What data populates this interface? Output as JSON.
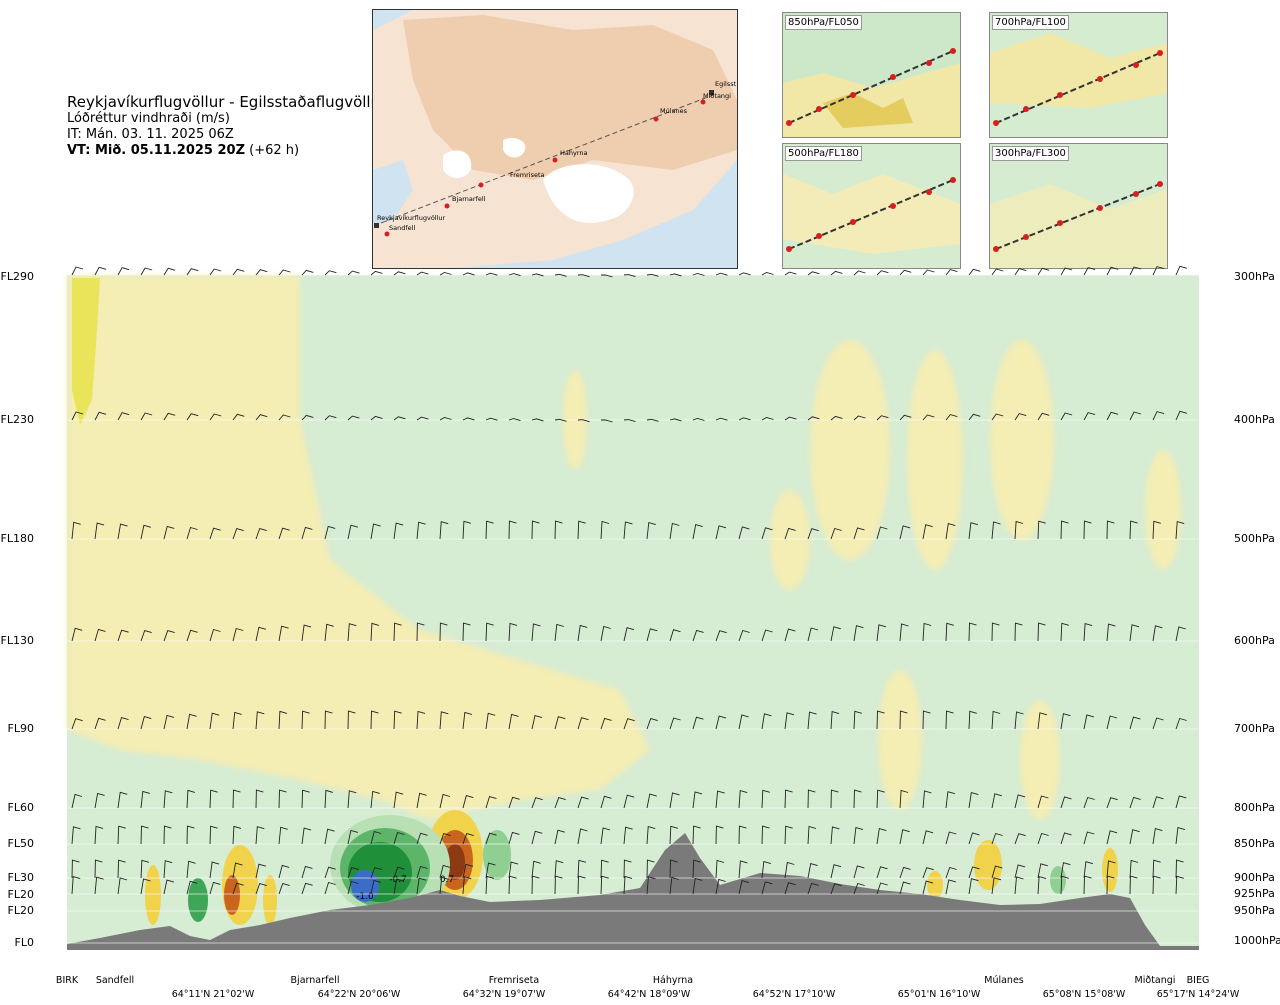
{
  "header": {
    "title": "Reykjavíkurflugvöllur - Egilsstaðaflugvöllur",
    "subtitle": "Lóðréttur vindhraði (m/s)",
    "issue_time": "IT: Mán. 03. 11. 2025 06Z",
    "valid_time_bold": "VT: Mið. 05.11.2025 20Z",
    "valid_time_offset": "(+62 h)"
  },
  "map": {
    "places": [
      "Egilsst",
      "Miðtangi",
      "Múlanes",
      "Háhyrna",
      "Fremriseta",
      "Bjarnarfell",
      "Reykjavíkurflugvöllur",
      "Sandfell"
    ]
  },
  "panels": [
    {
      "label": "850hPa/FL050"
    },
    {
      "label": "700hPa/FL100"
    },
    {
      "label": "500hPa/FL180"
    },
    {
      "label": "300hPa/FL300"
    }
  ],
  "chart_data": {
    "type": "heatmap",
    "variable": "vertical wind speed (m/s)",
    "left_axis": [
      "FL290",
      "FL230",
      "FL180",
      "FL130",
      "FL90",
      "FL60",
      "FL50",
      "FL30",
      "FL20",
      "FL20",
      "FL0"
    ],
    "right_axis": [
      "300hPa",
      "400hPa",
      "500hPa",
      "600hPa",
      "700hPa",
      "800hPa",
      "850hPa",
      "900hPa",
      "925hPa",
      "950hPa",
      "1000hPa"
    ],
    "stations": [
      "BIRK",
      "Sandfell",
      "Bjarnarfell",
      "Fremriseta",
      "Háhyrna",
      "Múlanes",
      "Miðtangi",
      "BIEG"
    ],
    "coordinates": [
      "64°11'N 21°02'W",
      "64°22'N 20°06'W",
      "64°32'N 19°07'W",
      "64°42'N 18°09'W",
      "64°52'N 17°10'W",
      "65°01'N 16°10'W",
      "65°08'N 15°08'W",
      "65°17'N 14°24'W"
    ],
    "contour_labels": [
      "-1.0",
      "-0.7",
      "0.7"
    ],
    "colors": {
      "strong_down": "#3a6cc8",
      "down": "#1f8f3a",
      "weak_down": "#cfe9cf",
      "neutral": "#ffffff",
      "weak_up": "#f3ecb0",
      "up": "#e6c43a",
      "strong_up": "#8c3a14",
      "terrain": "#7a7a7a"
    }
  }
}
